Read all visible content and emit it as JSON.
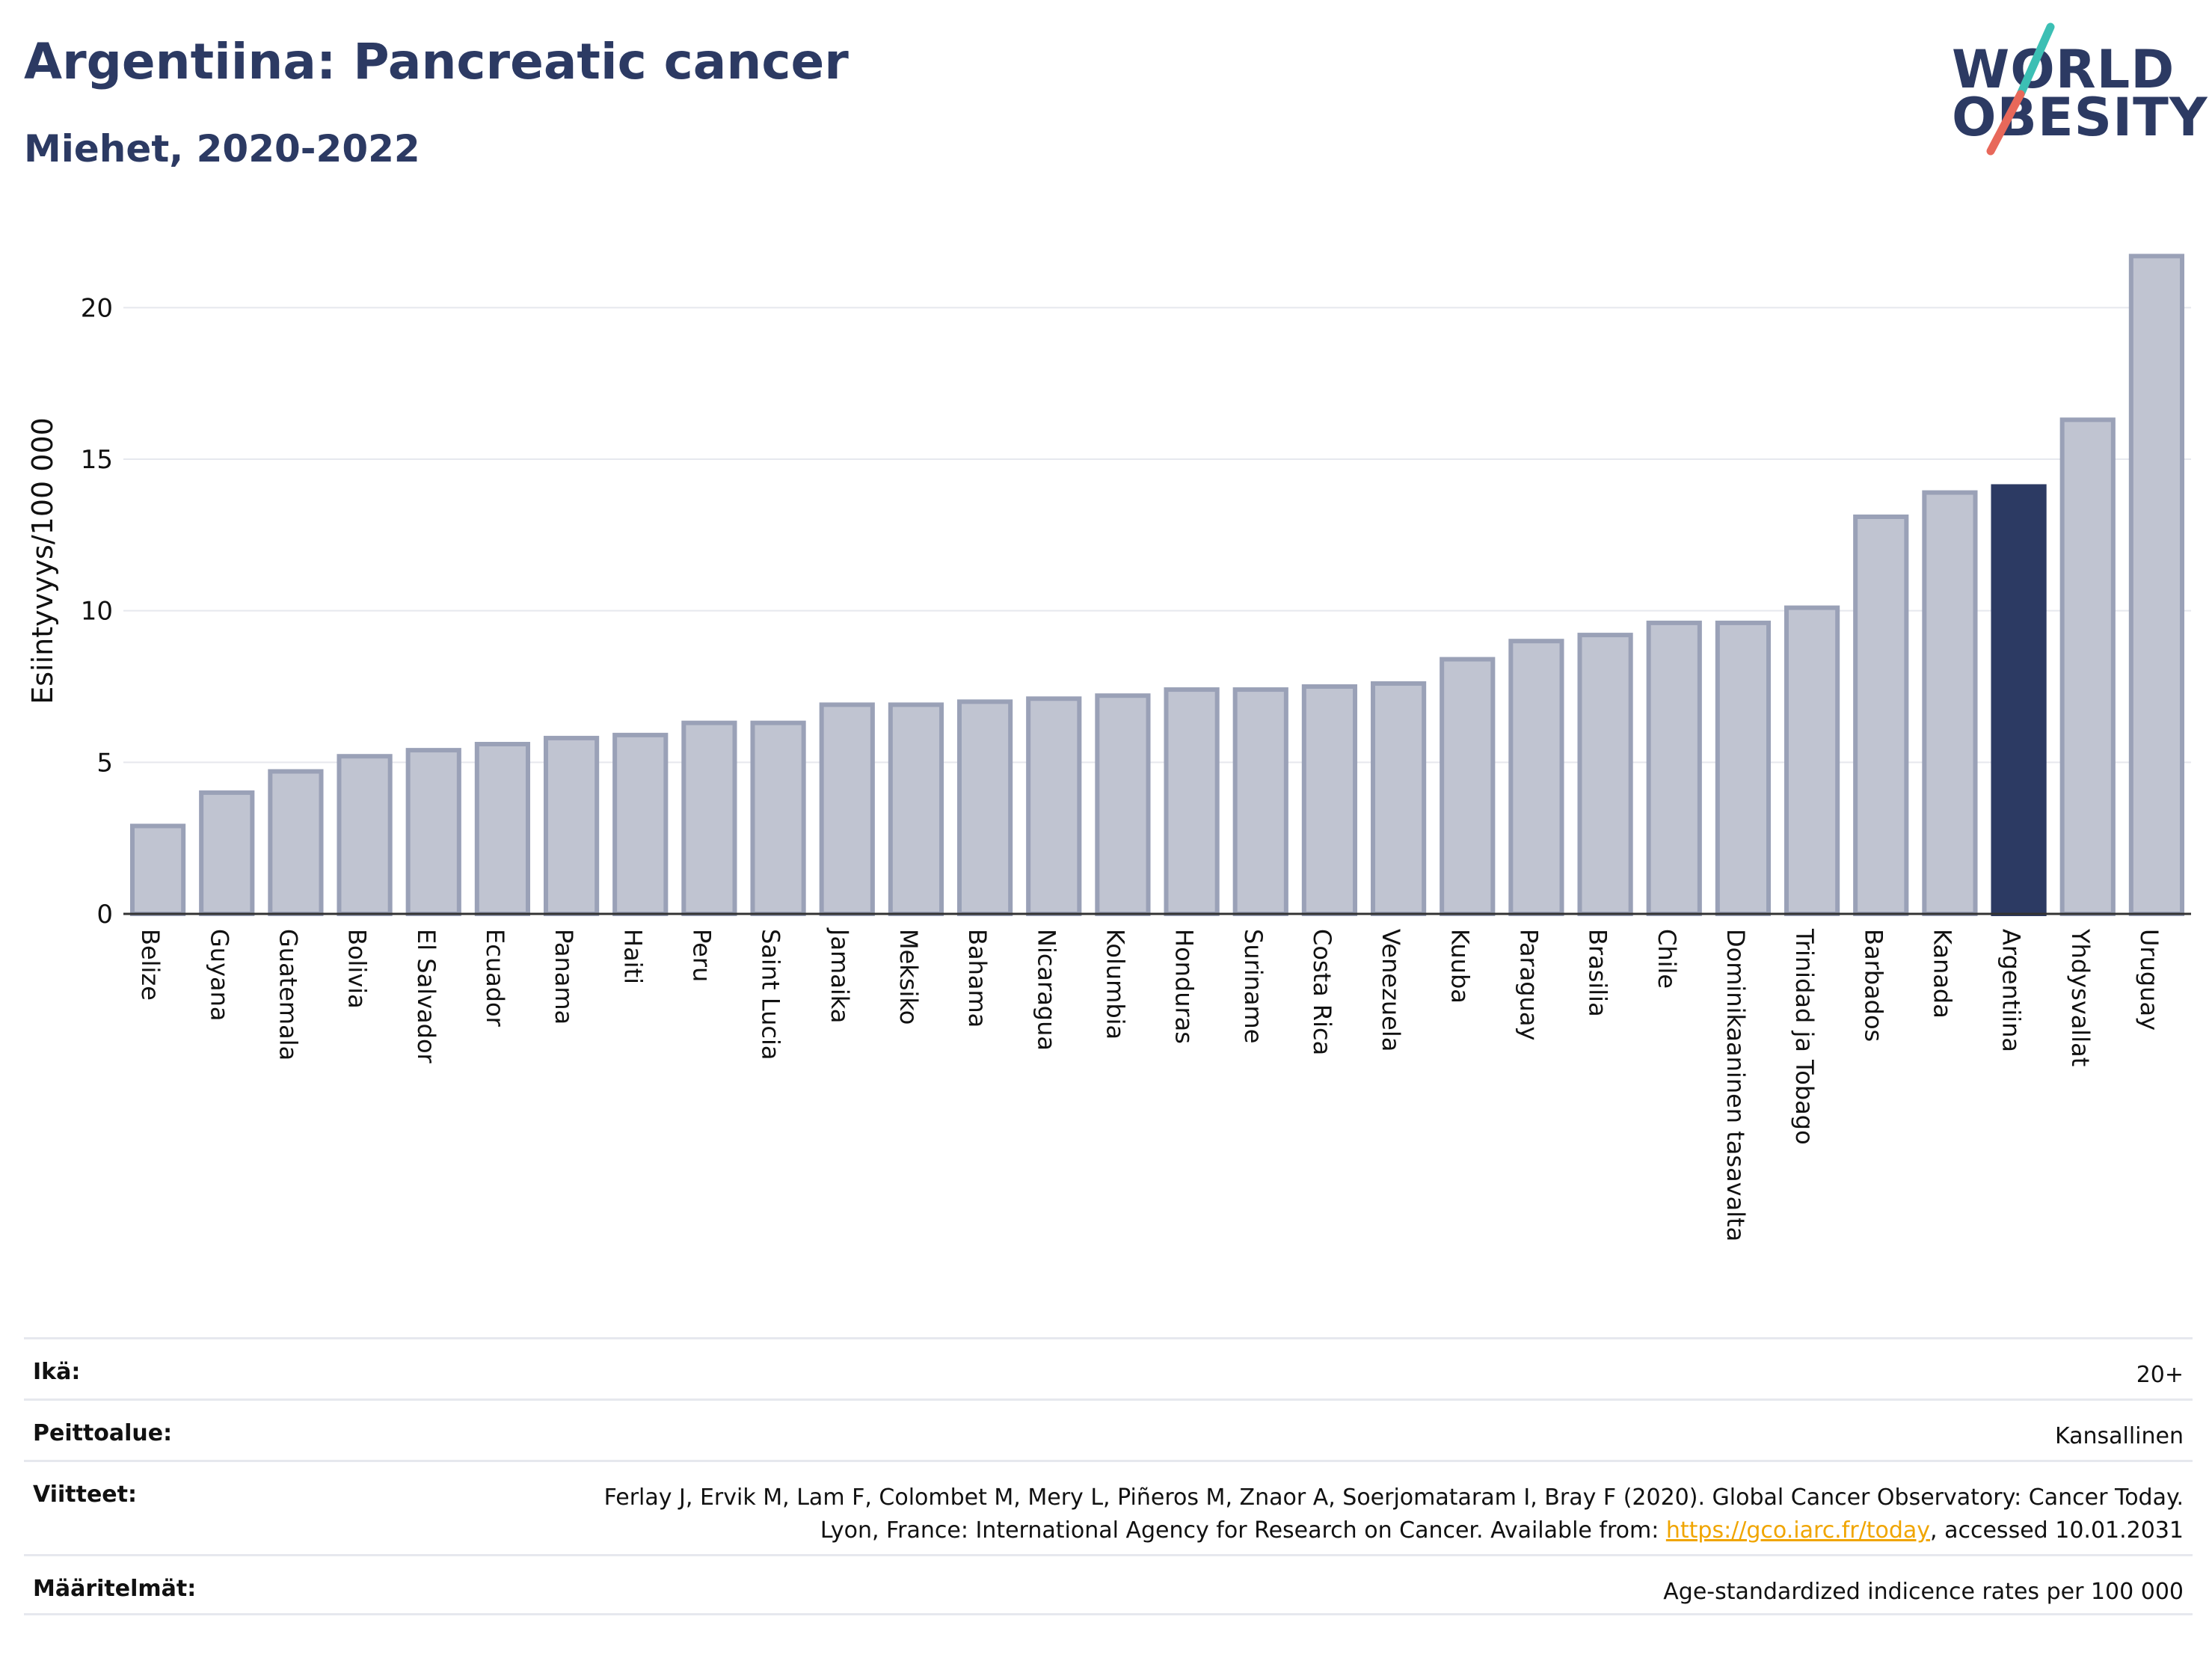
{
  "header": {
    "title": "Argentiina: Pancreatic cancer",
    "subtitle": "Miehet, 2020-2022"
  },
  "logo": {
    "line1": "WORLD",
    "line2": "OBESITY",
    "text_color": "#2c3a63",
    "slash_colors": [
      "#3cbfb4",
      "#e8685a"
    ]
  },
  "colors": {
    "bar": "#c0c4d1",
    "bar_stroke": "#9aa1b7",
    "highlight": "#2c3a63",
    "grid": "#e6e8ee"
  },
  "chart_data": {
    "type": "bar",
    "ylabel": "Esiintyvyys/100 000",
    "ylim": [
      0,
      22.5
    ],
    "yticks": [
      0,
      5,
      10,
      15,
      20
    ],
    "grid": true,
    "highlight": "Argentiina",
    "categories": [
      "Belize",
      "Guyana",
      "Guatemala",
      "Bolivia",
      "El Salvador",
      "Ecuador",
      "Panama",
      "Haiti",
      "Peru",
      "Saint Lucia",
      "Jamaika",
      "Meksiko",
      "Bahama",
      "Nicaragua",
      "Kolumbia",
      "Honduras",
      "Suriname",
      "Costa Rica",
      "Venezuela",
      "Kuuba",
      "Paraguay",
      "Brasilia",
      "Chile",
      "Dominikaaninen tasavalta",
      "Trinidad ja Tobago",
      "Barbados",
      "Kanada",
      "Argentiina",
      "Yhdysvallat",
      "Uruguay"
    ],
    "values": [
      2.9,
      4.0,
      4.7,
      5.2,
      5.4,
      5.6,
      5.8,
      5.9,
      6.3,
      6.3,
      6.9,
      6.9,
      7.0,
      7.1,
      7.2,
      7.4,
      7.4,
      7.5,
      7.6,
      8.4,
      9.0,
      9.2,
      9.6,
      9.6,
      10.1,
      13.1,
      13.9,
      14.1,
      16.3,
      21.7
    ]
  },
  "meta": {
    "age_label": "Ikä:",
    "age_value": "20+",
    "coverage_label": "Peittoalue:",
    "coverage_value": "Kansallinen",
    "refs_label": "Viitteet:",
    "refs_text_1": "Ferlay J, Ervik M, Lam F, Colombet M, Mery L, Piñeros M, Znaor A, Soerjomataram I, Bray F (2020). Global Cancer Observatory: Cancer Today. Lyon, France: International Agency for Research on Cancer. Available from: ",
    "refs_link": "https://gco.iarc.fr/today",
    "refs_text_2": ", accessed 10.01.2031",
    "defs_label": "Määritelmät:",
    "defs_value": "Age-standardized indicence rates per 100 000"
  }
}
